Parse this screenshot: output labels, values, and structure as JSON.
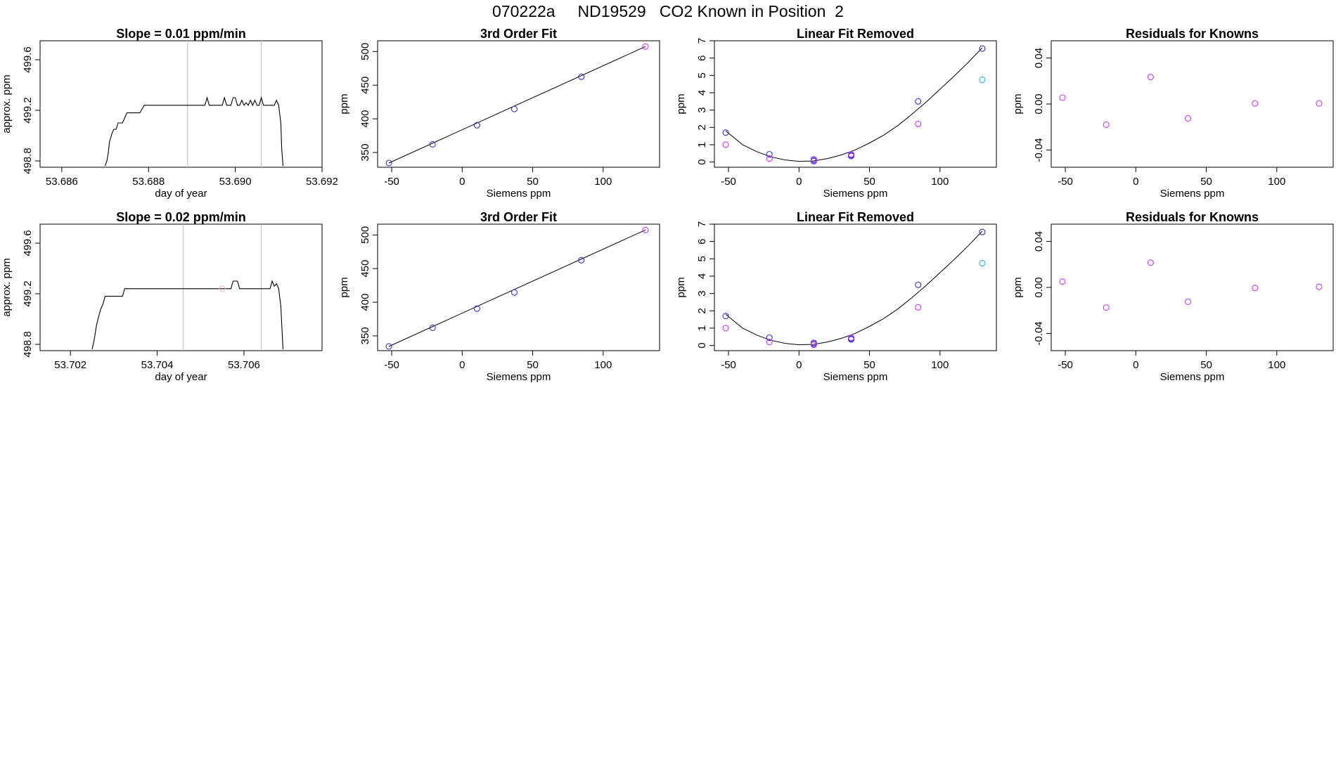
{
  "title": "070222a     ND19529   CO2 Known in Position  2",
  "colors": {
    "axis": "#000000",
    "trace": "#000000",
    "fit": "#000000",
    "vline": "#bfbfbf",
    "blue": "#3333cc",
    "magenta": "#cc33ff",
    "cyan": "#22bbdd",
    "pink": "#ffb0c0"
  },
  "chart_data": [
    {
      "id": "r1-timeseries",
      "type": "line",
      "title": "Slope =  0.01  ppm/min",
      "xlabel": "day of year",
      "ylabel": "approx. ppm",
      "xlim": [
        53.6855,
        53.692
      ],
      "ylim": [
        498.75,
        499.75
      ],
      "xticks": [
        53.686,
        53.688,
        53.69,
        53.692
      ],
      "xtick_labels": [
        "53.686",
        "53.688",
        "53.690",
        "53.692"
      ],
      "yticks": [
        498.8,
        499.2,
        499.6
      ],
      "ytick_labels": [
        "498.8",
        "499.2",
        "499.6"
      ],
      "vlines": [
        53.6889,
        53.6906
      ],
      "series": [
        {
          "name": "trace",
          "x": [
            53.687,
            53.68704,
            53.68707,
            53.6871,
            53.68716,
            53.6872,
            53.68725,
            53.6873,
            53.6874,
            53.6875,
            53.6876,
            53.6877,
            53.6878,
            53.6879,
            53.688,
            53.6881,
            53.6885,
            53.689,
            53.6893,
            53.68935,
            53.6894,
            53.6895,
            53.6897,
            53.68975,
            53.6898,
            53.6899,
            53.68995,
            53.69,
            53.69005,
            53.6901,
            53.69015,
            53.6902,
            53.69025,
            53.6903,
            53.69035,
            53.6904,
            53.69045,
            53.6905,
            53.69055,
            53.6906,
            53.69065,
            53.6907,
            53.69075,
            53.6908,
            53.6909,
            53.69095,
            53.691,
            53.69105,
            53.69107,
            53.6911
          ],
          "y": [
            498.76,
            498.8,
            498.86,
            498.95,
            499.02,
            499.05,
            499.05,
            499.1,
            499.1,
            499.18,
            499.18,
            499.18,
            499.18,
            499.24,
            499.24,
            499.24,
            499.24,
            499.24,
            499.24,
            499.3,
            499.24,
            499.24,
            499.24,
            499.3,
            499.24,
            499.24,
            499.3,
            499.3,
            499.24,
            499.24,
            499.28,
            499.24,
            499.26,
            499.24,
            499.28,
            499.24,
            499.28,
            499.24,
            499.24,
            499.3,
            499.24,
            499.24,
            499.24,
            499.24,
            499.24,
            499.28,
            499.24,
            499.1,
            498.9,
            498.76
          ]
        }
      ]
    },
    {
      "id": "r1-cubic",
      "type": "scatter",
      "title": "3rd Order Fit",
      "xlabel": "Siemens ppm",
      "ylabel": "ppm",
      "xlim": [
        -60,
        140
      ],
      "ylim": [
        328,
        516
      ],
      "xticks": [
        -50,
        0,
        50,
        100
      ],
      "xtick_labels": [
        "-50",
        "0",
        "50",
        "100"
      ],
      "yticks": [
        350,
        400,
        450,
        500
      ],
      "ytick_labels": [
        "350",
        "400",
        "450",
        "500"
      ],
      "curve": {
        "x": [
          -52,
          130
        ],
        "y": [
          334.3,
          507.4
        ]
      },
      "series": [
        {
          "name": "blue",
          "color": "blue",
          "x": [
            -52,
            -21,
            10.5,
            37,
            84.5
          ],
          "y": [
            334.3,
            362,
            390.5,
            414.5,
            462.5
          ]
        },
        {
          "name": "magenta",
          "color": "magenta",
          "x": [
            130
          ],
          "y": [
            507.4
          ]
        }
      ]
    },
    {
      "id": "r1-linear-removed",
      "type": "scatter",
      "title": "Linear Fit Removed",
      "xlabel": "Siemens ppm",
      "ylabel": "ppm",
      "xlim": [
        -60,
        140
      ],
      "ylim": [
        -0.3,
        7.0
      ],
      "xticks": [
        -50,
        0,
        50,
        100
      ],
      "xtick_labels": [
        "-50",
        "0",
        "50",
        "100"
      ],
      "yticks": [
        0,
        1,
        2,
        3,
        4,
        5,
        6,
        7
      ],
      "ytick_labels": [
        "0",
        "1",
        "2",
        "3",
        "4",
        "5",
        "6",
        "7"
      ],
      "curve": {
        "x": [
          -52,
          -40,
          -30,
          -20,
          -10,
          0,
          10,
          20,
          30,
          40,
          50,
          60,
          70,
          80,
          90,
          100,
          110,
          120,
          130
        ],
        "y": [
          1.8,
          1.0,
          0.6,
          0.3,
          0.12,
          0.04,
          0.06,
          0.2,
          0.41,
          0.7,
          1.1,
          1.55,
          2.1,
          2.75,
          3.45,
          4.2,
          4.95,
          5.75,
          6.6
        ]
      },
      "series": [
        {
          "name": "blue",
          "color": "blue",
          "x": [
            -52,
            -21,
            10.5,
            10.5,
            37,
            37,
            84.5,
            130
          ],
          "y": [
            1.7,
            0.45,
            0.15,
            0.05,
            0.4,
            0.35,
            3.5,
            6.55
          ]
        },
        {
          "name": "magenta",
          "color": "magenta",
          "x": [
            -52,
            -21,
            10.5,
            37,
            84.5
          ],
          "y": [
            1.0,
            0.2,
            0.1,
            0.45,
            2.2
          ]
        },
        {
          "name": "cyan",
          "color": "cyan",
          "x": [
            130
          ],
          "y": [
            4.75
          ]
        }
      ]
    },
    {
      "id": "r1-residuals",
      "type": "scatter",
      "title": "Residuals for Knowns",
      "xlabel": "Siemens ppm",
      "ylabel": "ppm",
      "xlim": [
        -60,
        140
      ],
      "ylim": [
        -0.055,
        0.055
      ],
      "xticks": [
        -50,
        0,
        50,
        100
      ],
      "xtick_labels": [
        "-50",
        "0",
        "50",
        "100"
      ],
      "yticks": [
        -0.04,
        0.0,
        0.04
      ],
      "ytick_labels": [
        "-0.04",
        "0.00",
        "0.04"
      ],
      "series": [
        {
          "name": "magenta",
          "color": "magenta",
          "x": [
            -52,
            -21,
            10.5,
            37,
            84.5,
            130
          ],
          "y": [
            0.0055,
            -0.018,
            0.0235,
            -0.0125,
            0.0005,
            0.0005
          ]
        }
      ]
    },
    {
      "id": "r2-timeseries",
      "type": "line",
      "title": "Slope =  0.02  ppm/min",
      "xlabel": "day of year",
      "ylabel": "approx. ppm",
      "xlim": [
        53.7013,
        53.7078
      ],
      "ylim": [
        498.75,
        499.75
      ],
      "xticks": [
        53.702,
        53.704,
        53.706
      ],
      "xtick_labels": [
        "53.702",
        "53.704",
        "53.706"
      ],
      "yticks": [
        498.8,
        499.2,
        499.6
      ],
      "ytick_labels": [
        "498.8",
        "499.2",
        "499.6"
      ],
      "vlines": [
        53.7046,
        53.7064
      ],
      "series": [
        {
          "name": "trace",
          "x": [
            53.7025,
            53.70255,
            53.7026,
            53.70265,
            53.7027,
            53.70275,
            53.7028,
            53.7029,
            53.703,
            53.7031,
            53.7032,
            53.70325,
            53.704,
            53.705,
            53.7057,
            53.70575,
            53.7058,
            53.70585,
            53.7059,
            53.706,
            53.7065,
            53.7066,
            53.70665,
            53.7067,
            53.70675,
            53.7068,
            53.70685,
            53.70688,
            53.7069
          ],
          "y": [
            498.76,
            498.84,
            498.95,
            499.02,
            499.08,
            499.12,
            499.18,
            499.18,
            499.18,
            499.18,
            499.18,
            499.24,
            499.24,
            499.24,
            499.24,
            499.3,
            499.3,
            499.3,
            499.24,
            499.24,
            499.24,
            499.24,
            499.3,
            499.26,
            499.28,
            499.24,
            499.1,
            498.9,
            498.76
          ]
        },
        {
          "name": "faint-marker",
          "color": "pink",
          "x": [
            53.7055
          ],
          "y": [
            499.24
          ],
          "marker": "circle"
        }
      ]
    },
    {
      "id": "r2-cubic",
      "type": "scatter",
      "title": "3rd Order Fit",
      "xlabel": "Siemens ppm",
      "ylabel": "ppm",
      "xlim": [
        -60,
        140
      ],
      "ylim": [
        328,
        516
      ],
      "xticks": [
        -50,
        0,
        50,
        100
      ],
      "xtick_labels": [
        "-50",
        "0",
        "50",
        "100"
      ],
      "yticks": [
        350,
        400,
        450,
        500
      ],
      "ytick_labels": [
        "350",
        "400",
        "450",
        "500"
      ],
      "curve": {
        "x": [
          -52,
          130
        ],
        "y": [
          334.3,
          507.4
        ]
      },
      "series": [
        {
          "name": "blue",
          "color": "blue",
          "x": [
            -52,
            -21,
            10.5,
            37,
            84.5
          ],
          "y": [
            334.3,
            362,
            390.5,
            414.5,
            462.5
          ]
        },
        {
          "name": "magenta",
          "color": "magenta",
          "x": [
            130
          ],
          "y": [
            507.4
          ]
        }
      ]
    },
    {
      "id": "r2-linear-removed",
      "type": "scatter",
      "title": "Linear Fit Removed",
      "xlabel": "Siemens ppm",
      "ylabel": "ppm",
      "xlim": [
        -60,
        140
      ],
      "ylim": [
        -0.3,
        7.0
      ],
      "xticks": [
        -50,
        0,
        50,
        100
      ],
      "xtick_labels": [
        "-50",
        "0",
        "50",
        "100"
      ],
      "yticks": [
        0,
        1,
        2,
        3,
        4,
        5,
        6,
        7
      ],
      "ytick_labels": [
        "0",
        "1",
        "2",
        "3",
        "4",
        "5",
        "6",
        "7"
      ],
      "curve": {
        "x": [
          -52,
          -40,
          -30,
          -20,
          -10,
          0,
          10,
          20,
          30,
          40,
          50,
          60,
          70,
          80,
          90,
          100,
          110,
          120,
          130
        ],
        "y": [
          1.8,
          1.0,
          0.6,
          0.3,
          0.12,
          0.04,
          0.06,
          0.2,
          0.41,
          0.7,
          1.1,
          1.55,
          2.1,
          2.75,
          3.45,
          4.2,
          4.95,
          5.75,
          6.6
        ]
      },
      "series": [
        {
          "name": "blue",
          "color": "blue",
          "x": [
            -52,
            -21,
            10.5,
            10.5,
            37,
            37,
            84.5,
            130
          ],
          "y": [
            1.7,
            0.45,
            0.15,
            0.05,
            0.4,
            0.35,
            3.5,
            6.55
          ]
        },
        {
          "name": "magenta",
          "color": "magenta",
          "x": [
            -52,
            -21,
            10.5,
            37,
            84.5
          ],
          "y": [
            1.0,
            0.2,
            0.1,
            0.45,
            2.2
          ]
        },
        {
          "name": "cyan",
          "color": "cyan",
          "x": [
            130
          ],
          "y": [
            4.75
          ]
        }
      ]
    },
    {
      "id": "r2-residuals",
      "type": "scatter",
      "title": "Residuals for Knowns",
      "xlabel": "Siemens ppm",
      "ylabel": "ppm",
      "xlim": [
        -60,
        140
      ],
      "ylim": [
        -0.055,
        0.055
      ],
      "xticks": [
        -50,
        0,
        50,
        100
      ],
      "xtick_labels": [
        "-50",
        "0",
        "50",
        "100"
      ],
      "yticks": [
        -0.04,
        0.0,
        0.04
      ],
      "ytick_labels": [
        "-0.04",
        "0.00",
        "0.04"
      ],
      "series": [
        {
          "name": "magenta",
          "color": "magenta",
          "x": [
            -52,
            -21,
            10.5,
            37,
            84.5,
            130
          ],
          "y": [
            0.005,
            -0.0175,
            0.0215,
            -0.0125,
            -0.0005,
            0.0005
          ]
        }
      ]
    }
  ]
}
